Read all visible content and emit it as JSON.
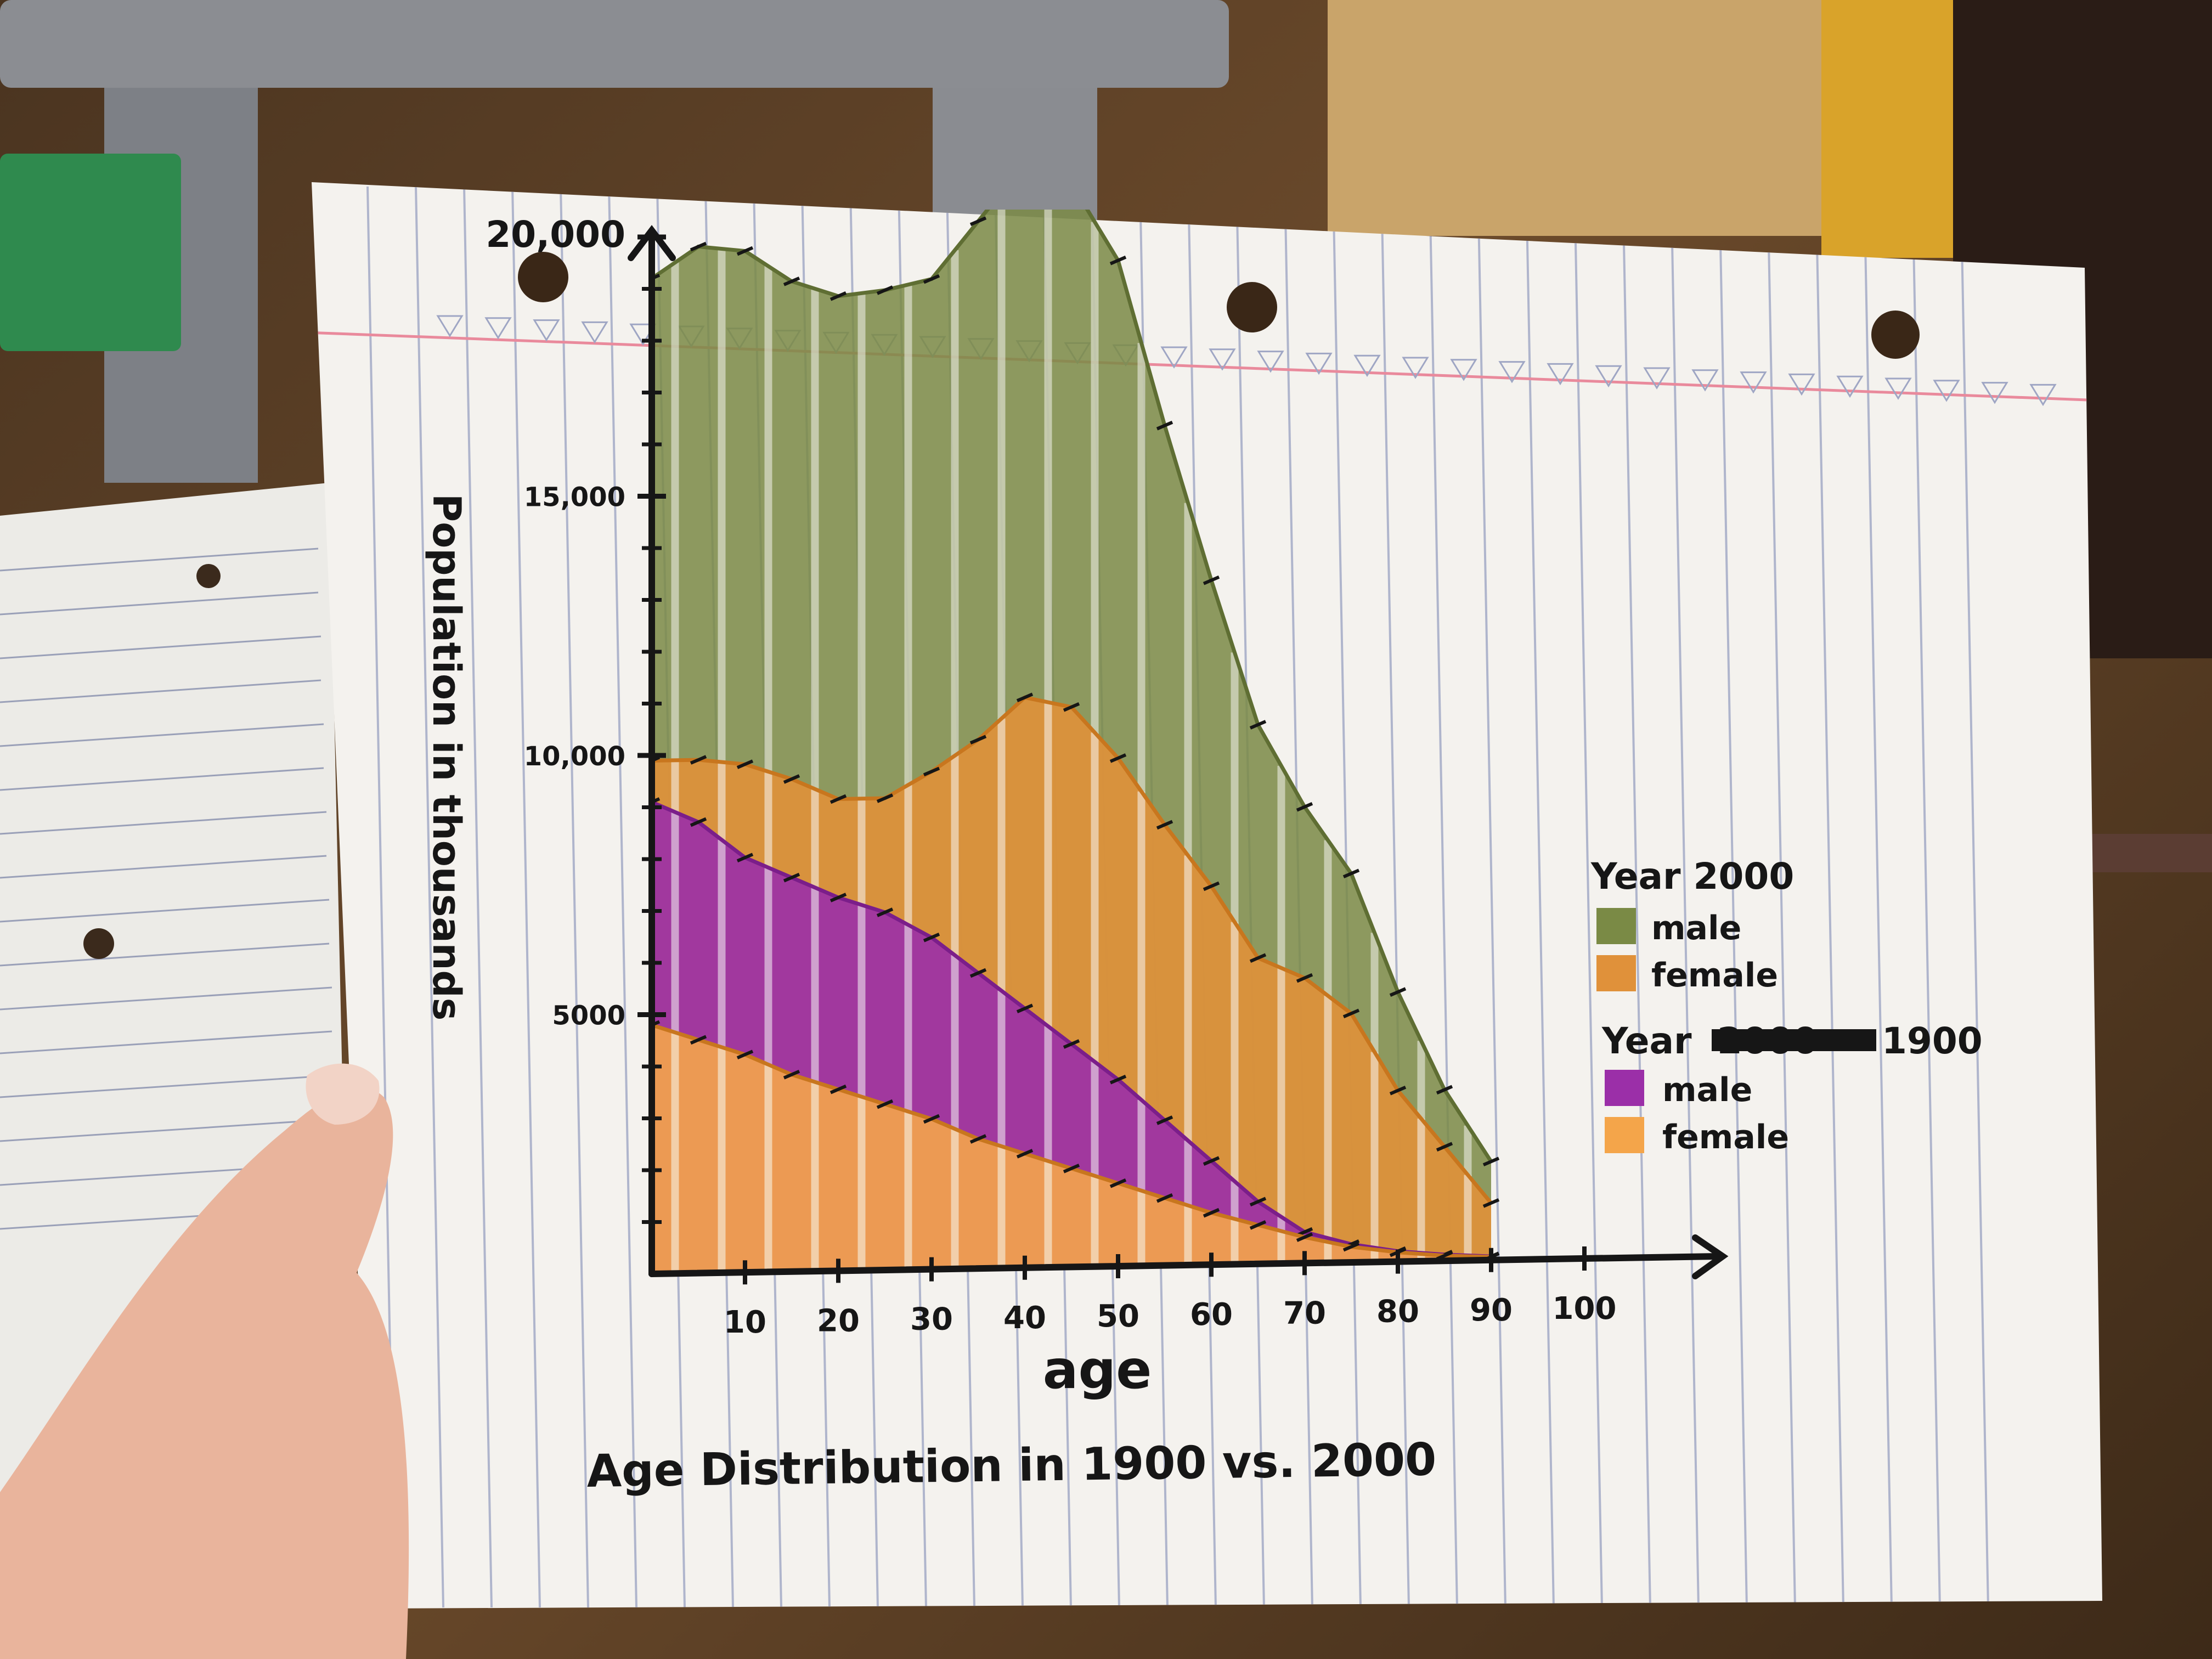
{
  "chart_data": {
    "type": "area",
    "title": "Age Distribution in 1900 vs. 2000",
    "xlabel": "age",
    "ylabel": "Population in thousands",
    "xlim": [
      0,
      100
    ],
    "ylim": [
      0,
      20000
    ],
    "x_ticks": [
      10,
      20,
      30,
      40,
      50,
      60,
      70,
      80,
      90,
      100
    ],
    "y_tick_labels": [
      {
        "value": 5000,
        "label": "5000"
      },
      {
        "value": 10000,
        "label": "10,000"
      },
      {
        "value": 15000,
        "label": "15,000"
      },
      {
        "value": 20000,
        "label": "20,000"
      }
    ],
    "x": [
      0,
      5,
      10,
      15,
      20,
      25,
      30,
      35,
      40,
      45,
      50,
      55,
      60,
      65,
      70,
      75,
      80,
      85,
      90
    ],
    "series": [
      {
        "group": "Year 2000",
        "name": "male",
        "color": "#7a8a45",
        "values": [
          19200,
          19800,
          19700,
          19100,
          18800,
          18900,
          19100,
          20200,
          21300,
          20900,
          19400,
          16200,
          13200,
          10400,
          8800,
          7500,
          5200,
          3300,
          1900
        ]
      },
      {
        "group": "Year 2000",
        "name": "female",
        "color": "#e0913a",
        "values": [
          9900,
          9900,
          9800,
          9500,
          9100,
          9100,
          9600,
          10200,
          11000,
          10800,
          9800,
          8500,
          7300,
          5900,
          5500,
          4800,
          3300,
          2200,
          1100
        ]
      },
      {
        "group": "Year 1900",
        "name": "male",
        "color": "#9b2fa8",
        "values": [
          9100,
          8700,
          8000,
          7600,
          7200,
          6900,
          6400,
          5700,
          5000,
          4300,
          3600,
          2800,
          2000,
          1200,
          600,
          350,
          200,
          120,
          70
        ]
      },
      {
        "group": "Year 1900",
        "name": "female",
        "color": "#f4a54a",
        "values": [
          4800,
          4500,
          4200,
          3800,
          3500,
          3200,
          2900,
          2500,
          2200,
          1900,
          1600,
          1300,
          1000,
          750,
          500,
          300,
          180,
          100,
          60
        ]
      }
    ],
    "legend": {
      "placement": "right",
      "groups": [
        {
          "title": "Year 2000",
          "entries": [
            "male",
            "female"
          ]
        },
        {
          "title_prefix": "Year",
          "struck": "2000",
          "title_suffix": "1900",
          "entries": [
            "male",
            "female"
          ]
        }
      ]
    },
    "grid": false
  },
  "colors": {
    "paper": "#f4f2ee",
    "rule_line": "#9fa6c4",
    "margin_line": "#e98a9c",
    "ink": "#161616"
  }
}
